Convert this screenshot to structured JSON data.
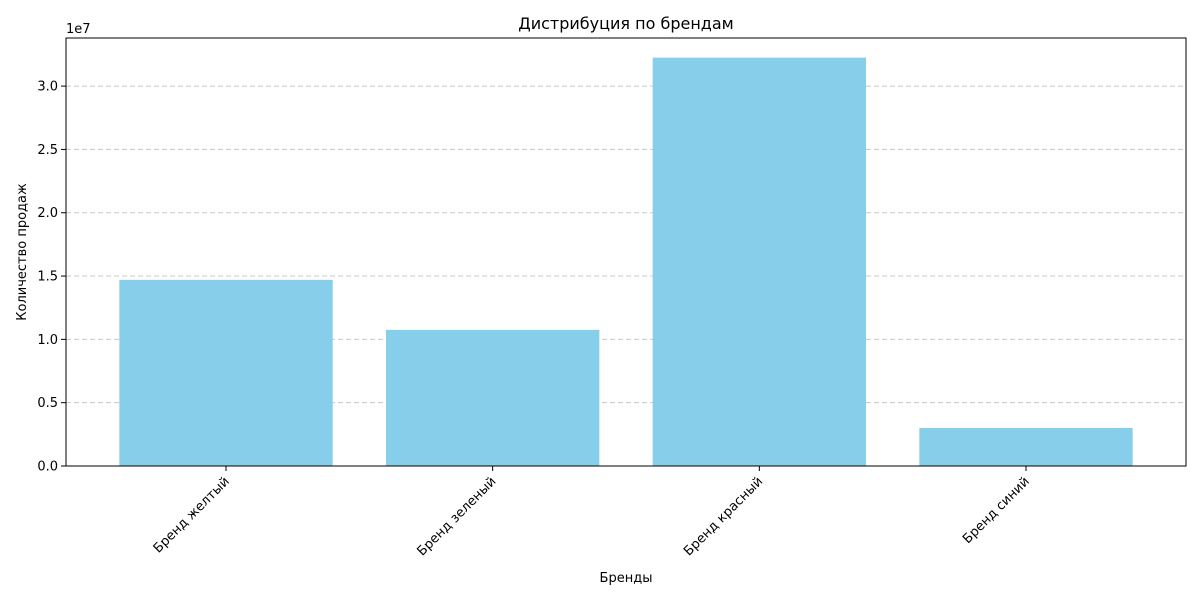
{
  "chart_data": {
    "type": "bar",
    "title": "Дистрибуция по брендам",
    "xlabel": "Бренды",
    "ylabel": "Количество продаж",
    "scale_label": "1e7",
    "categories": [
      "Бренд желтый",
      "Бренд зеленый",
      "Бренд красный",
      "Бренд синий"
    ],
    "values": [
      14700000,
      10750000,
      32250000,
      3000000
    ],
    "ylim": [
      0,
      33800000
    ],
    "yticks": [
      0,
      5000000,
      10000000,
      15000000,
      20000000,
      25000000,
      30000000
    ],
    "ytick_labels": [
      "0.0",
      "0.5",
      "1.0",
      "1.5",
      "2.0",
      "2.5",
      "3.0"
    ],
    "bar_color": "#87ceeb",
    "grid": "y-dashed",
    "xtick_rotation": "45"
  }
}
